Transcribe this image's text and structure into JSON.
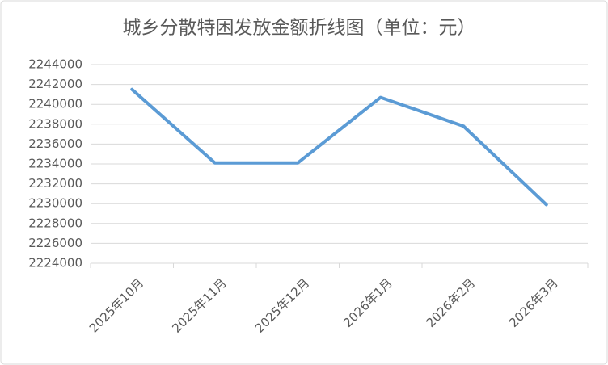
{
  "chart_data": {
    "type": "line",
    "title": "城乡分散特困发放金额折线图（单位：元）",
    "categories": [
      "2025年10月",
      "2025年11月",
      "2025年12月",
      "2026年1月",
      "2026年2月",
      "2026年3月"
    ],
    "series": [
      {
        "name": "发放金额",
        "color": "#5b9bd5",
        "values": [
          2241500,
          2234100,
          2234100,
          2240700,
          2237800,
          2229900
        ]
      }
    ],
    "ylim": [
      2224000,
      2244000
    ],
    "yticks": [
      2224000,
      2226000,
      2228000,
      2230000,
      2232000,
      2234000,
      2236000,
      2238000,
      2240000,
      2242000,
      2244000
    ],
    "grid": true
  }
}
